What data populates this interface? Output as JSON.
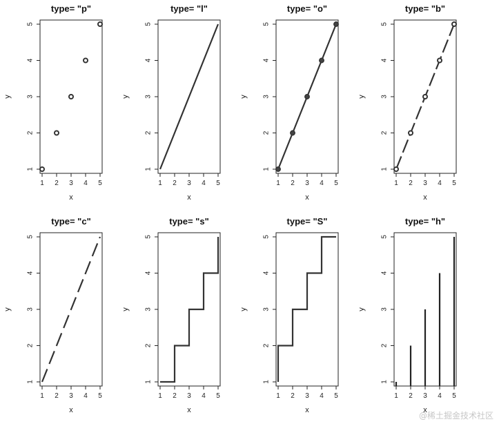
{
  "chart_data": [
    {
      "type": "scatter",
      "plot_type": "p",
      "title": "type= \"p\"",
      "xlabel": "x",
      "ylabel": "y",
      "x": [
        1,
        2,
        3,
        4,
        5
      ],
      "y": [
        1,
        2,
        3,
        4,
        5
      ],
      "xlim": [
        1,
        5
      ],
      "ylim": [
        1,
        5
      ],
      "xticks": [
        "1",
        "2",
        "3",
        "4",
        "5"
      ],
      "yticks": [
        "1",
        "2",
        "3",
        "4",
        "5"
      ]
    },
    {
      "type": "line",
      "plot_type": "l",
      "title": "type= \"l\"",
      "xlabel": "x",
      "ylabel": "y",
      "x": [
        1,
        2,
        3,
        4,
        5
      ],
      "y": [
        1,
        2,
        3,
        4,
        5
      ],
      "xlim": [
        1,
        5
      ],
      "ylim": [
        1,
        5
      ],
      "xticks": [
        "1",
        "2",
        "3",
        "4",
        "5"
      ],
      "yticks": [
        "1",
        "2",
        "3",
        "4",
        "5"
      ]
    },
    {
      "type": "line",
      "plot_type": "o",
      "title": "type= \"o\"",
      "xlabel": "x",
      "ylabel": "y",
      "x": [
        1,
        2,
        3,
        4,
        5
      ],
      "y": [
        1,
        2,
        3,
        4,
        5
      ],
      "xlim": [
        1,
        5
      ],
      "ylim": [
        1,
        5
      ],
      "xticks": [
        "1",
        "2",
        "3",
        "4",
        "5"
      ],
      "yticks": [
        "1",
        "2",
        "3",
        "4",
        "5"
      ]
    },
    {
      "type": "line",
      "plot_type": "b",
      "title": "type= \"b\"",
      "xlabel": "x",
      "ylabel": "y",
      "x": [
        1,
        2,
        3,
        4,
        5
      ],
      "y": [
        1,
        2,
        3,
        4,
        5
      ],
      "xlim": [
        1,
        5
      ],
      "ylim": [
        1,
        5
      ],
      "xticks": [
        "1",
        "2",
        "3",
        "4",
        "5"
      ],
      "yticks": [
        "1",
        "2",
        "3",
        "4",
        "5"
      ]
    },
    {
      "type": "line",
      "plot_type": "c",
      "title": "type= \"c\"",
      "xlabel": "x",
      "ylabel": "y",
      "x": [
        1,
        2,
        3,
        4,
        5
      ],
      "y": [
        1,
        2,
        3,
        4,
        5
      ],
      "xlim": [
        1,
        5
      ],
      "ylim": [
        1,
        5
      ],
      "xticks": [
        "1",
        "2",
        "3",
        "4",
        "5"
      ],
      "yticks": [
        "1",
        "2",
        "3",
        "4",
        "5"
      ]
    },
    {
      "type": "line",
      "plot_type": "s",
      "title": "type= \"s\"",
      "xlabel": "x",
      "ylabel": "y",
      "x": [
        1,
        2,
        3,
        4,
        5
      ],
      "y": [
        1,
        2,
        3,
        4,
        5
      ],
      "xlim": [
        1,
        5
      ],
      "ylim": [
        1,
        5
      ],
      "xticks": [
        "1",
        "2",
        "3",
        "4",
        "5"
      ],
      "yticks": [
        "1",
        "2",
        "3",
        "4",
        "5"
      ]
    },
    {
      "type": "line",
      "plot_type": "S",
      "title": "type= \"S\"",
      "xlabel": "x",
      "ylabel": "y",
      "x": [
        1,
        2,
        3,
        4,
        5
      ],
      "y": [
        1,
        2,
        3,
        4,
        5
      ],
      "xlim": [
        1,
        5
      ],
      "ylim": [
        1,
        5
      ],
      "xticks": [
        "1",
        "2",
        "3",
        "4",
        "5"
      ],
      "yticks": [
        "1",
        "2",
        "3",
        "4",
        "5"
      ]
    },
    {
      "type": "bar",
      "plot_type": "h",
      "title": "type= \"h\"",
      "xlabel": "x",
      "ylabel": "y",
      "x": [
        1,
        2,
        3,
        4,
        5
      ],
      "y": [
        1,
        2,
        3,
        4,
        5
      ],
      "xlim": [
        1,
        5
      ],
      "ylim": [
        1,
        5
      ],
      "xticks": [
        "1",
        "2",
        "3",
        "4",
        "5"
      ],
      "yticks": [
        "1",
        "2",
        "3",
        "4",
        "5"
      ]
    }
  ],
  "watermark": "@稀土掘金技术社区"
}
